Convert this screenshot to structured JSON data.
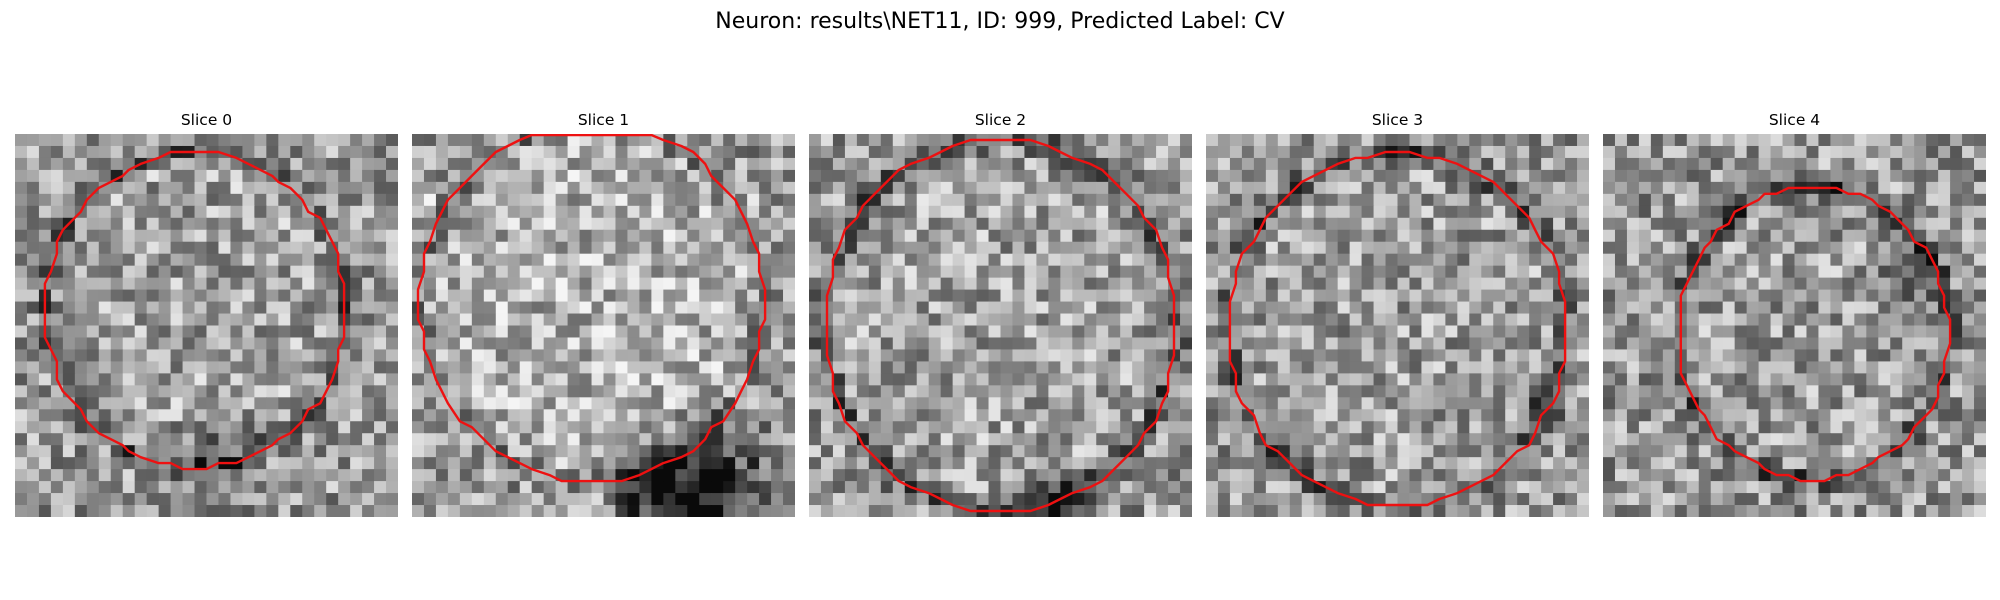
{
  "figure": {
    "title": "Neuron: results\\NET11, ID: 999, Predicted Label: CV"
  },
  "panels": [
    {
      "title": "Slice 0"
    },
    {
      "title": "Slice 1"
    },
    {
      "title": "Slice 2"
    },
    {
      "title": "Slice 3"
    },
    {
      "title": "Slice 4"
    }
  ],
  "colors": {
    "contour": "#ee1111",
    "background": "#ffffff"
  },
  "image": {
    "colormap": "grayscale",
    "grid_cells": 32
  }
}
